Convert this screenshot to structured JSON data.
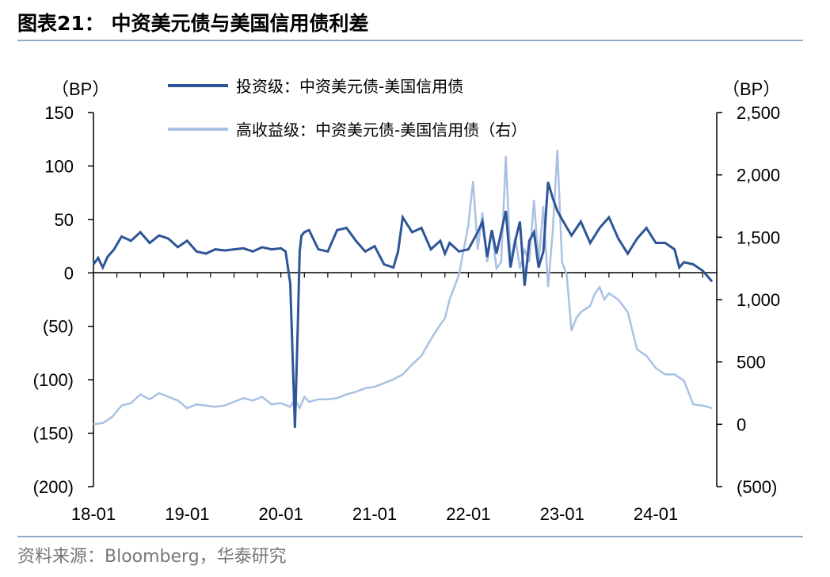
{
  "header": {
    "title": "图表21：  中资美元债与美国信用债利差"
  },
  "footer": {
    "source": "资料来源：Bloomberg，华泰研究"
  },
  "chart_data": {
    "type": "line",
    "left_unit": "（BP）",
    "right_unit": "（BP）",
    "left_axis": {
      "ylim": [
        -200,
        150
      ],
      "ticks": [
        150,
        100,
        50,
        0,
        -50,
        -100,
        -150,
        -200
      ],
      "tick_labels": [
        "150",
        "100",
        "50",
        "0",
        "(50)",
        "(100)",
        "(150)",
        "(200)"
      ]
    },
    "right_axis": {
      "ylim": [
        -500,
        2500
      ],
      "ticks": [
        2500,
        2000,
        1500,
        1000,
        500,
        0,
        -500
      ],
      "tick_labels": [
        "2,500",
        "2,000",
        "1,500",
        "1,000",
        "500",
        "0",
        "(500)"
      ]
    },
    "x_tick_labels": [
      "18-01",
      "19-01",
      "20-01",
      "21-01",
      "22-01",
      "23-01",
      "24-01"
    ],
    "colors": {
      "investment_grade": "#2e5597",
      "high_yield": "#a9c1e3"
    },
    "series": [
      {
        "name": "投资级：中资美元债-美国信用债",
        "axis": "left",
        "x": [
          2018.0,
          2018.05,
          2018.1,
          2018.15,
          2018.22,
          2018.3,
          2018.4,
          2018.5,
          2018.6,
          2018.7,
          2018.8,
          2018.9,
          2019.0,
          2019.1,
          2019.2,
          2019.3,
          2019.4,
          2019.5,
          2019.6,
          2019.7,
          2019.8,
          2019.9,
          2020.0,
          2020.05,
          2020.1,
          2020.15,
          2020.18,
          2020.2,
          2020.22,
          2020.25,
          2020.3,
          2020.4,
          2020.5,
          2020.6,
          2020.7,
          2020.8,
          2020.9,
          2021.0,
          2021.1,
          2021.2,
          2021.25,
          2021.3,
          2021.4,
          2021.5,
          2021.6,
          2021.7,
          2021.75,
          2021.8,
          2021.9,
          2022.0,
          2022.1,
          2022.15,
          2022.2,
          2022.25,
          2022.3,
          2022.4,
          2022.45,
          2022.5,
          2022.55,
          2022.6,
          2022.65,
          2022.7,
          2022.75,
          2022.8,
          2022.85,
          2022.9,
          2022.95,
          2023.0,
          2023.1,
          2023.2,
          2023.3,
          2023.4,
          2023.5,
          2023.6,
          2023.7,
          2023.8,
          2023.9,
          2024.0,
          2024.1,
          2024.2,
          2024.25,
          2024.3,
          2024.4,
          2024.5,
          2024.6
        ],
        "values": [
          8,
          14,
          5,
          15,
          22,
          34,
          30,
          38,
          28,
          35,
          32,
          24,
          30,
          20,
          18,
          22,
          21,
          22,
          23,
          20,
          24,
          22,
          23,
          20,
          -10,
          -145,
          -50,
          20,
          35,
          38,
          40,
          22,
          20,
          40,
          42,
          30,
          20,
          25,
          8,
          5,
          20,
          52,
          38,
          42,
          22,
          30,
          18,
          28,
          20,
          22,
          38,
          48,
          15,
          40,
          18,
          58,
          5,
          30,
          48,
          -12,
          30,
          38,
          5,
          20,
          85,
          70,
          58,
          50,
          35,
          48,
          28,
          42,
          52,
          32,
          18,
          32,
          42,
          28,
          28,
          22,
          5,
          10,
          8,
          2,
          -8
        ]
      },
      {
        "name": "高收益级：中资美元债-美国信用债（右）",
        "axis": "right",
        "x": [
          2018.0,
          2018.1,
          2018.2,
          2018.3,
          2018.4,
          2018.5,
          2018.6,
          2018.7,
          2018.8,
          2018.9,
          2019.0,
          2019.1,
          2019.2,
          2019.3,
          2019.4,
          2019.5,
          2019.6,
          2019.7,
          2019.8,
          2019.9,
          2020.0,
          2020.1,
          2020.15,
          2020.2,
          2020.25,
          2020.3,
          2020.4,
          2020.5,
          2020.6,
          2020.7,
          2020.8,
          2020.9,
          2021.0,
          2021.1,
          2021.2,
          2021.3,
          2021.4,
          2021.5,
          2021.6,
          2021.7,
          2021.75,
          2021.8,
          2021.85,
          2021.9,
          2022.0,
          2022.05,
          2022.1,
          2022.15,
          2022.2,
          2022.25,
          2022.3,
          2022.35,
          2022.4,
          2022.45,
          2022.5,
          2022.55,
          2022.6,
          2022.65,
          2022.7,
          2022.75,
          2022.8,
          2022.85,
          2022.9,
          2022.95,
          2023.0,
          2023.05,
          2023.1,
          2023.15,
          2023.2,
          2023.3,
          2023.35,
          2023.4,
          2023.45,
          2023.5,
          2023.6,
          2023.7,
          2023.8,
          2023.9,
          2024.0,
          2024.1,
          2024.2,
          2024.3,
          2024.4,
          2024.5,
          2024.6
        ],
        "values": [
          0,
          10,
          60,
          150,
          170,
          240,
          200,
          250,
          220,
          190,
          130,
          160,
          150,
          140,
          150,
          180,
          210,
          190,
          220,
          160,
          170,
          140,
          200,
          130,
          220,
          180,
          200,
          200,
          210,
          240,
          260,
          290,
          300,
          330,
          360,
          400,
          480,
          550,
          680,
          800,
          850,
          1000,
          1100,
          1200,
          1600,
          1950,
          1400,
          1700,
          1300,
          1550,
          1250,
          1300,
          2150,
          1300,
          1500,
          1250,
          1400,
          1300,
          1800,
          1300,
          1750,
          1100,
          1550,
          2200,
          1300,
          1200,
          750,
          850,
          900,
          950,
          1050,
          1100,
          1000,
          1050,
          1000,
          900,
          600,
          550,
          450,
          400,
          400,
          350,
          160,
          150,
          130
        ]
      }
    ]
  }
}
